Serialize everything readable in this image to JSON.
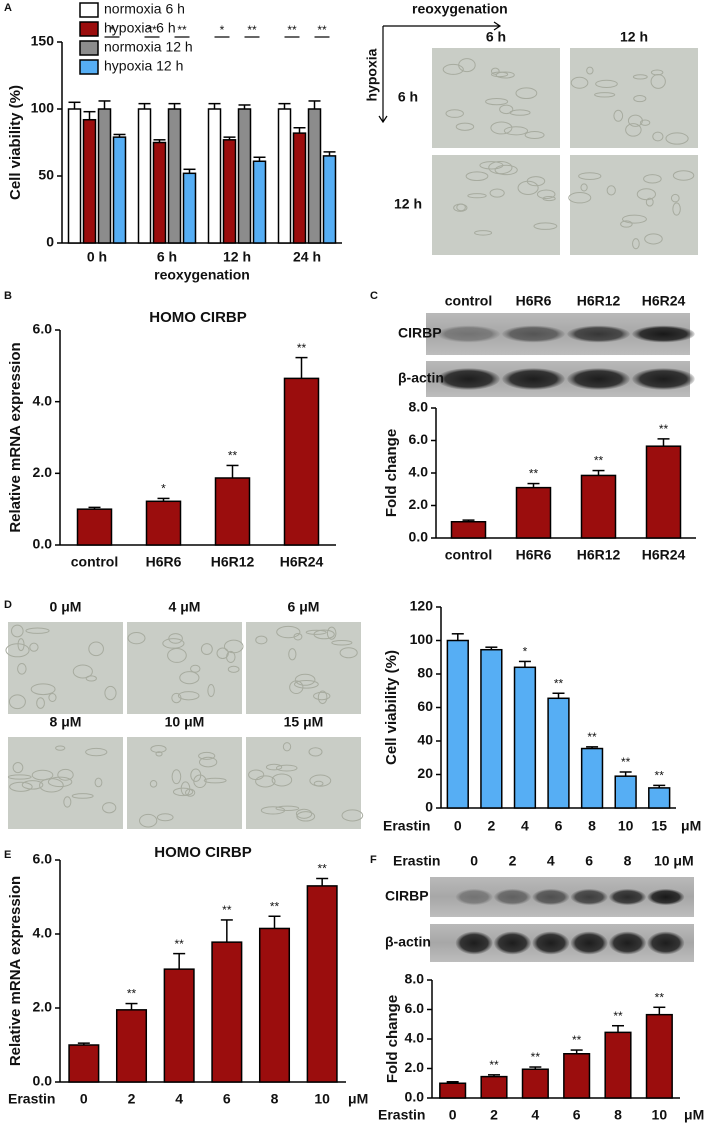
{
  "chart_data": [
    {
      "type": "bar",
      "panel": "A",
      "y_label": "Cell viability (%)",
      "x_label": "reoxygenation",
      "categories": [
        "0 h",
        "6 h",
        "12 h",
        "24 h"
      ],
      "series": [
        {
          "name": "normoxia 6 h",
          "color": "#ffffff",
          "values": [
            100,
            100,
            100,
            100
          ],
          "errors": [
            5,
            4,
            4,
            4
          ]
        },
        {
          "name": "hypoxia 6 h",
          "color": "#9b0d0d",
          "values": [
            92,
            75,
            77,
            82
          ],
          "errors": [
            6,
            2,
            2,
            4
          ],
          "stars": [
            null,
            "**",
            "*",
            "**"
          ]
        },
        {
          "name": "normoxia 12 h",
          "color": "#8c8c8c",
          "values": [
            100,
            100,
            100,
            100
          ],
          "errors": [
            6,
            4,
            3,
            6
          ]
        },
        {
          "name": "hypoxia 12 h",
          "color": "#56aef4",
          "values": [
            79,
            52,
            61,
            65
          ],
          "errors": [
            2,
            3,
            3,
            3
          ],
          "stars": [
            "*",
            "**",
            "**",
            "**"
          ]
        }
      ],
      "ylim": [
        0,
        150
      ],
      "yticks": [
        0,
        50,
        100,
        150
      ],
      "legend": "top-left"
    },
    {
      "type": "image-grid",
      "col_title": "reoxygenation",
      "row_title": "hypoxia",
      "col_labels": [
        "6 h",
        "12 h"
      ],
      "row_labels": [
        "6 h",
        "12 h"
      ]
    },
    {
      "type": "bar",
      "panel": "B",
      "title": "HOMO CIRBP",
      "y_label": "Relative mRNA expression",
      "categories": [
        "control",
        "H6R6",
        "H6R12",
        "H6R24"
      ],
      "values": [
        1.0,
        1.22,
        1.87,
        4.65
      ],
      "errors": [
        0.05,
        0.08,
        0.35,
        0.58
      ],
      "stars": [
        null,
        "*",
        "**",
        "**"
      ],
      "color": "#9b0d0d",
      "ylim": [
        0,
        6
      ],
      "yticks": [
        {
          "value": 0,
          "label": "0.0"
        },
        {
          "value": 2,
          "label": "2.0"
        },
        {
          "value": 4,
          "label": "4.0"
        },
        {
          "value": 6,
          "label": "6.0"
        }
      ]
    },
    {
      "type": "blot",
      "panel": "C",
      "lanes": [
        "control",
        "H6R6",
        "H6R12",
        "H6R24"
      ],
      "rows": [
        "CIRBP",
        "β-actin"
      ]
    },
    {
      "type": "bar",
      "y_label": "Fold change",
      "categories": [
        "control",
        "H6R6",
        "H6R12",
        "H6R24"
      ],
      "values": [
        1.0,
        3.1,
        3.85,
        5.65
      ],
      "errors": [
        0.1,
        0.25,
        0.3,
        0.45
      ],
      "stars": [
        null,
        "**",
        "**",
        "**"
      ],
      "color": "#9b0d0d",
      "ylim": [
        0,
        8
      ],
      "yticks": [
        {
          "value": 0,
          "label": "0.0"
        },
        {
          "value": 2,
          "label": "2.0"
        },
        {
          "value": 4,
          "label": "4.0"
        },
        {
          "value": 6,
          "label": "6.0"
        },
        {
          "value": 8,
          "label": "8.0"
        }
      ]
    },
    {
      "type": "image-grid",
      "panel": "D",
      "labels": [
        "0 μM",
        "4 μM",
        "6 μM",
        "8 μM",
        "10 μM",
        "15 μM"
      ]
    },
    {
      "type": "bar",
      "y_label": "Cell viability (%)",
      "x_prefix": "Erastin",
      "x_suffix": "μM",
      "categories": [
        "0",
        "2",
        "4",
        "6",
        "8",
        "10",
        "15"
      ],
      "values": [
        100,
        94.5,
        84,
        65.5,
        35.5,
        19,
        12
      ],
      "errors": [
        4,
        1.5,
        3.5,
        3,
        1,
        2.5,
        1.5
      ],
      "stars": [
        null,
        null,
        "*",
        "**",
        "**",
        "**",
        "**"
      ],
      "color": "#56aef4",
      "ylim": [
        0,
        120
      ],
      "yticks": [
        0,
        20,
        40,
        60,
        80,
        100,
        120
      ]
    },
    {
      "type": "bar",
      "panel": "E",
      "title": "HOMO CIRBP",
      "y_label": "Relative mRNA expression",
      "x_prefix": "Erastin",
      "x_suffix": "μM",
      "categories": [
        "0",
        "2",
        "4",
        "6",
        "8",
        "10"
      ],
      "values": [
        1.0,
        1.95,
        3.05,
        3.78,
        4.15,
        5.3
      ],
      "errors": [
        0.05,
        0.17,
        0.42,
        0.6,
        0.33,
        0.2
      ],
      "stars": [
        null,
        "**",
        "**",
        "**",
        "**",
        "**"
      ],
      "color": "#9b0d0d",
      "ylim": [
        0,
        6
      ],
      "yticks": [
        {
          "value": 0,
          "label": "0.0"
        },
        {
          "value": 2,
          "label": "2.0"
        },
        {
          "value": 4,
          "label": "4.0"
        },
        {
          "value": 6,
          "label": "6.0"
        }
      ]
    },
    {
      "type": "blot",
      "panel": "F",
      "lane_title": "Erastin",
      "lanes": [
        "0",
        "2",
        "4",
        "6",
        "8",
        "10 μM"
      ],
      "rows": [
        "CIRBP",
        "β-actin"
      ]
    },
    {
      "type": "bar",
      "y_label": "Fold change",
      "x_prefix": "Erastin",
      "x_suffix": "μM",
      "categories": [
        "0",
        "2",
        "4",
        "6",
        "8",
        "10"
      ],
      "values": [
        1.0,
        1.45,
        1.95,
        3.0,
        4.45,
        5.65
      ],
      "errors": [
        0.1,
        0.12,
        0.15,
        0.25,
        0.45,
        0.5
      ],
      "stars": [
        null,
        "**",
        "**",
        "**",
        "**",
        "**"
      ],
      "color": "#9b0d0d",
      "ylim": [
        0,
        8
      ],
      "yticks": [
        {
          "value": 0,
          "label": "0.0"
        },
        {
          "value": 2,
          "label": "2.0"
        },
        {
          "value": 4,
          "label": "4.0"
        },
        {
          "value": 6,
          "label": "6.0"
        },
        {
          "value": 8,
          "label": "8.0"
        }
      ]
    }
  ]
}
